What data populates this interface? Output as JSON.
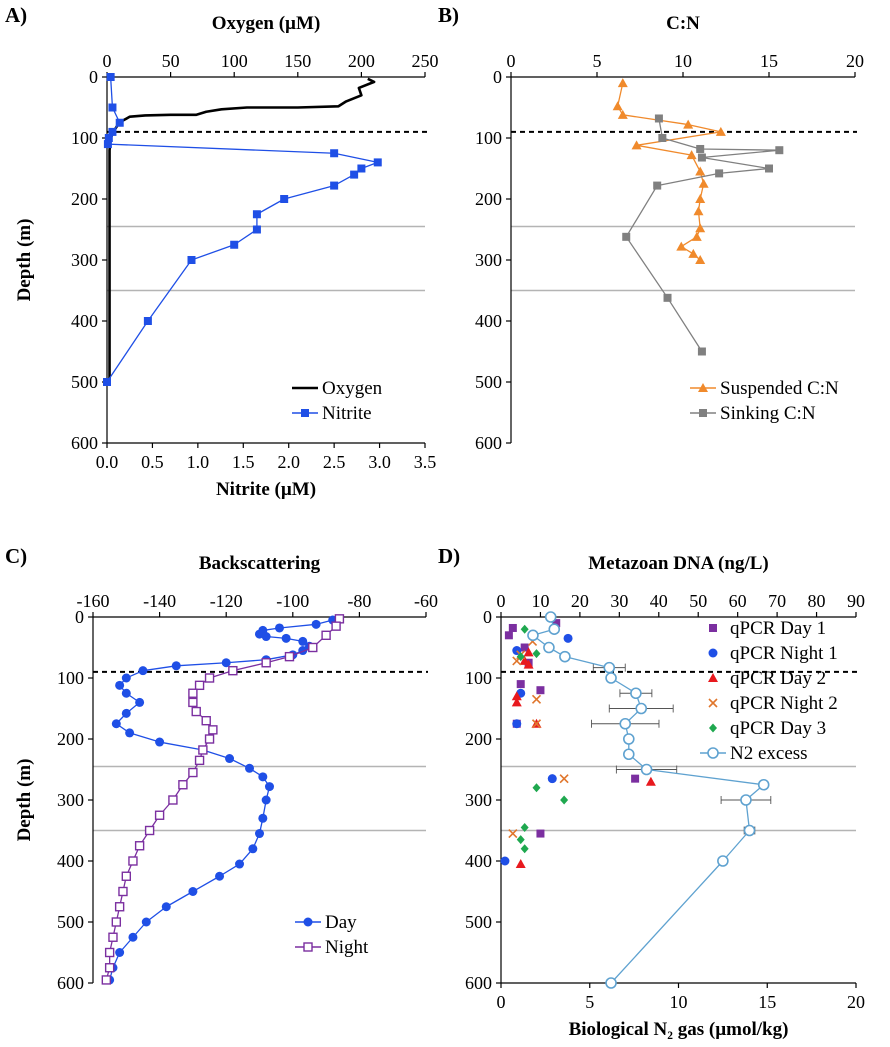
{
  "panels": {
    "A": {
      "label": "A)"
    },
    "B": {
      "label": "B)"
    },
    "C": {
      "label": "C)"
    },
    "D": {
      "label": "D)"
    }
  },
  "chart_data": [
    {
      "id": "A",
      "type": "line",
      "top_axis_title": "Oxygen (µM)",
      "top_lim": [
        0,
        250
      ],
      "top_ticks": [
        0,
        50,
        100,
        150,
        200,
        250
      ],
      "bottom_axis_title": "Nitrite (µM)",
      "bottom_lim": [
        0,
        3.5
      ],
      "bottom_ticks": [
        "0.0",
        "0.5",
        "1.0",
        "1.5",
        "2.0",
        "2.5",
        "3.0",
        "3.5"
      ],
      "ylabel": "Depth (m)",
      "ylim": [
        0,
        600
      ],
      "yticks": [
        0,
        100,
        200,
        300,
        400,
        500,
        600
      ],
      "y_inverted": true,
      "dashed_line_depth": 90,
      "gray_line_depths": [
        245,
        350
      ],
      "legend": {
        "position": "bottom-right"
      },
      "series": [
        {
          "name": "Oxygen",
          "axis": "top",
          "color": "#000000",
          "marker": "none",
          "points": [
            [
              205,
              3
            ],
            [
              210,
              8
            ],
            [
              198,
              18
            ],
            [
              200,
              30
            ],
            [
              188,
              40
            ],
            [
              182,
              48
            ],
            [
              150,
              50
            ],
            [
              110,
              50
            ],
            [
              90,
              53
            ],
            [
              78,
              57
            ],
            [
              70,
              62
            ],
            [
              50,
              62
            ],
            [
              30,
              63
            ],
            [
              18,
              65
            ],
            [
              12,
              72
            ],
            [
              8,
              80
            ],
            [
              5,
              90
            ],
            [
              3,
              100
            ],
            [
              2,
              120
            ],
            [
              2,
              200
            ],
            [
              2,
              300
            ],
            [
              2,
              400
            ],
            [
              2,
              500
            ]
          ]
        },
        {
          "name": "Nitrite",
          "axis": "bottom",
          "color": "#1f4fe6",
          "marker": "square",
          "points": [
            [
              0.04,
              0
            ],
            [
              0.06,
              50
            ],
            [
              0.14,
              75
            ],
            [
              0.06,
              90
            ],
            [
              0.02,
              100
            ],
            [
              0.01,
              110
            ],
            [
              2.5,
              125
            ],
            [
              2.98,
              140
            ],
            [
              2.8,
              150
            ],
            [
              2.72,
              160
            ],
            [
              2.5,
              178
            ],
            [
              1.95,
              200
            ],
            [
              1.65,
              225
            ],
            [
              1.65,
              250
            ],
            [
              1.4,
              275
            ],
            [
              0.93,
              300
            ],
            [
              0.45,
              400
            ],
            [
              0.0,
              500
            ]
          ]
        }
      ]
    },
    {
      "id": "B",
      "type": "line",
      "top_axis_title": "C:N",
      "top_lim": [
        0,
        20
      ],
      "top_ticks": [
        0,
        5,
        10,
        15,
        20
      ],
      "ylim": [
        0,
        600
      ],
      "yticks": [
        0,
        100,
        200,
        300,
        400,
        500,
        600
      ],
      "y_inverted": true,
      "dashed_line_depth": 90,
      "gray_line_depths": [
        245,
        350
      ],
      "legend": {
        "position": "bottom-right"
      },
      "series": [
        {
          "name": "Suspended C:N",
          "color": "#f08a2c",
          "marker": "triangle",
          "points": [
            [
              6.5,
              10
            ],
            [
              6.2,
              48
            ],
            [
              6.5,
              62
            ],
            [
              10.3,
              78
            ],
            [
              12.2,
              90
            ],
            [
              7.3,
              112
            ],
            [
              10.5,
              128
            ],
            [
              11.0,
              155
            ],
            [
              11.2,
              175
            ],
            [
              11.0,
              200
            ],
            [
              10.9,
              220
            ],
            [
              11.0,
              248
            ],
            [
              10.8,
              262
            ],
            [
              9.9,
              278
            ],
            [
              10.6,
              290
            ],
            [
              11.0,
              300
            ]
          ]
        },
        {
          "name": "Sinking C:N",
          "color": "#808080",
          "marker": "square",
          "points": [
            [
              8.6,
              68
            ],
            [
              8.8,
              100
            ],
            [
              11.0,
              118
            ],
            [
              15.6,
              120
            ],
            [
              11.1,
              132
            ],
            [
              15.0,
              150
            ],
            [
              12.1,
              158
            ],
            [
              8.5,
              178
            ],
            [
              6.7,
              262
            ],
            [
              9.1,
              362
            ],
            [
              11.1,
              450
            ]
          ]
        }
      ]
    },
    {
      "id": "C",
      "type": "line",
      "top_axis_title": "Backscattering",
      "top_lim": [
        -160,
        -60
      ],
      "top_ticks": [
        -160,
        -140,
        -120,
        -100,
        -80,
        -60
      ],
      "ylabel": "Depth (m)",
      "ylim": [
        0,
        600
      ],
      "yticks": [
        0,
        100,
        200,
        300,
        400,
        500,
        600
      ],
      "y_inverted": true,
      "dashed_line_depth": 90,
      "gray_line_depths": [
        245,
        350
      ],
      "legend": {
        "position": "bottom-right"
      },
      "series": [
        {
          "name": "Day",
          "color": "#1f4fe6",
          "marker": "circle",
          "points": [
            [
              -88,
              5
            ],
            [
              -93,
              12
            ],
            [
              -104,
              18
            ],
            [
              -109,
              22
            ],
            [
              -110,
              28
            ],
            [
              -108,
              32
            ],
            [
              -102,
              35
            ],
            [
              -97,
              40
            ],
            [
              -95,
              48
            ],
            [
              -97,
              55
            ],
            [
              -100,
              62
            ],
            [
              -108,
              70
            ],
            [
              -120,
              75
            ],
            [
              -135,
              80
            ],
            [
              -145,
              88
            ],
            [
              -150,
              100
            ],
            [
              -152,
              112
            ],
            [
              -150,
              125
            ],
            [
              -146,
              140
            ],
            [
              -150,
              158
            ],
            [
              -153,
              175
            ],
            [
              -149,
              190
            ],
            [
              -140,
              205
            ],
            [
              -127,
              218
            ],
            [
              -119,
              232
            ],
            [
              -113,
              248
            ],
            [
              -109,
              262
            ],
            [
              -107,
              278
            ],
            [
              -108,
              300
            ],
            [
              -109,
              330
            ],
            [
              -110,
              355
            ],
            [
              -112,
              380
            ],
            [
              -116,
              405
            ],
            [
              -122,
              425
            ],
            [
              -130,
              450
            ],
            [
              -138,
              475
            ],
            [
              -144,
              500
            ],
            [
              -148,
              525
            ],
            [
              -152,
              550
            ],
            [
              -154,
              575
            ],
            [
              -155,
              595
            ]
          ]
        },
        {
          "name": "Night",
          "color": "#7b2fa0",
          "marker": "open-square",
          "points": [
            [
              -86,
              3
            ],
            [
              -87,
              15
            ],
            [
              -90,
              30
            ],
            [
              -94,
              50
            ],
            [
              -101,
              65
            ],
            [
              -108,
              75
            ],
            [
              -118,
              88
            ],
            [
              -125,
              100
            ],
            [
              -128,
              112
            ],
            [
              -130,
              125
            ],
            [
              -130,
              140
            ],
            [
              -129,
              155
            ],
            [
              -126,
              170
            ],
            [
              -124,
              185
            ],
            [
              -125,
              200
            ],
            [
              -127,
              218
            ],
            [
              -128,
              235
            ],
            [
              -130,
              255
            ],
            [
              -133,
              275
            ],
            [
              -136,
              300
            ],
            [
              -140,
              325
            ],
            [
              -143,
              350
            ],
            [
              -146,
              375
            ],
            [
              -148,
              400
            ],
            [
              -150,
              425
            ],
            [
              -151,
              450
            ],
            [
              -152,
              475
            ],
            [
              -153,
              500
            ],
            [
              -154,
              525
            ],
            [
              -155,
              550
            ],
            [
              -155,
              575
            ],
            [
              -156,
              595
            ]
          ]
        }
      ]
    },
    {
      "id": "D",
      "type": "scatter",
      "top_axis_title": "Metazoan DNA (ng/L)",
      "top_lim": [
        0,
        90
      ],
      "top_ticks": [
        0,
        10,
        20,
        30,
        40,
        50,
        60,
        70,
        80,
        90
      ],
      "bottom_axis_title": "Biological N₂ gas (µmol/kg)",
      "bottom_lim": [
        0,
        20
      ],
      "bottom_ticks": [
        0,
        5,
        10,
        15,
        20
      ],
      "ylim": [
        0,
        600
      ],
      "yticks": [
        0,
        100,
        200,
        300,
        400,
        500,
        600
      ],
      "y_inverted": true,
      "dashed_line_depth": 90,
      "gray_line_depths": [
        245,
        350
      ],
      "legend": {
        "position": "top-right"
      },
      "series": [
        {
          "name": "qPCR Day 1",
          "axis": "top",
          "color": "#7b2fa0",
          "marker": "square",
          "points": [
            [
              14,
              10
            ],
            [
              3,
              18
            ],
            [
              2,
              30
            ],
            [
              6,
              50
            ],
            [
              7,
              75
            ],
            [
              5,
              110
            ],
            [
              10,
              120
            ],
            [
              4,
              175
            ],
            [
              34,
              265
            ],
            [
              10,
              355
            ]
          ]
        },
        {
          "name": "qPCR Night 1",
          "axis": "top",
          "color": "#1f4fe6",
          "marker": "circle",
          "points": [
            [
              17,
              35
            ],
            [
              4,
              55
            ],
            [
              5,
              125
            ],
            [
              4,
              175
            ],
            [
              13,
              265
            ],
            [
              1,
              400
            ]
          ]
        },
        {
          "name": "qPCR Day 2",
          "axis": "top",
          "color": "#e8191e",
          "marker": "triangle",
          "points": [
            [
              7,
              58
            ],
            [
              6,
              72
            ],
            [
              7,
              78
            ],
            [
              4,
              130
            ],
            [
              4,
              140
            ],
            [
              9,
              175
            ],
            [
              38,
              270
            ],
            [
              5,
              405
            ]
          ]
        },
        {
          "name": "qPCR Night 2",
          "axis": "top",
          "color": "#e0762c",
          "marker": "x",
          "points": [
            [
              8,
              40
            ],
            [
              5,
              62
            ],
            [
              4,
              72
            ],
            [
              9,
              135
            ],
            [
              9,
              175
            ],
            [
              16,
              265
            ],
            [
              3,
              355
            ]
          ]
        },
        {
          "name": "qPCR Day 3",
          "axis": "top",
          "color": "#1fa84f",
          "marker": "diamond",
          "points": [
            [
              6,
              20
            ],
            [
              9,
              60
            ],
            [
              5,
              65
            ],
            [
              9,
              280
            ],
            [
              16,
              300
            ],
            [
              6,
              345
            ],
            [
              5,
              365
            ],
            [
              6,
              380
            ]
          ]
        },
        {
          "name": "N2 excess",
          "axis": "bottom",
          "color": "#5fa2d0",
          "marker": "open-circle",
          "points": [
            [
              2.8,
              0
            ],
            [
              3.0,
              20
            ],
            [
              1.8,
              30
            ],
            [
              2.7,
              50
            ],
            [
              3.6,
              65
            ],
            [
              6.1,
              83
            ],
            [
              6.2,
              100
            ],
            [
              7.6,
              125
            ],
            [
              7.9,
              150
            ],
            [
              7.0,
              175
            ],
            [
              7.2,
              200
            ],
            [
              7.2,
              225
            ],
            [
              8.2,
              250
            ],
            [
              14.8,
              275
            ],
            [
              13.8,
              300
            ],
            [
              14.0,
              350
            ],
            [
              12.5,
              400
            ],
            [
              6.2,
              600
            ]
          ],
          "error_x": [
            0,
            0,
            0,
            0,
            0,
            0.9,
            0,
            0.9,
            1.8,
            1.9,
            0,
            0,
            1.7,
            0,
            1.4,
            0.3,
            0,
            0
          ]
        }
      ]
    }
  ]
}
